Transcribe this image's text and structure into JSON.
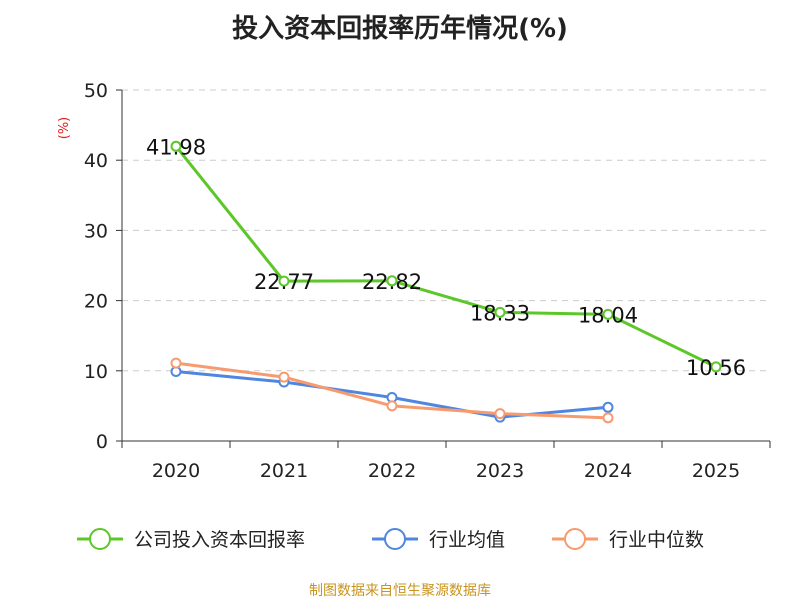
{
  "title": "投入资本回报率历年情况(%)",
  "source": "制图数据来自恒生聚源数据库",
  "chart_data": {
    "type": "line",
    "categories": [
      "2020",
      "2021",
      "2022",
      "2023",
      "2024",
      "2025"
    ],
    "ylabel": "(%)",
    "ylim": [
      0,
      50
    ],
    "yticks": [
      0,
      10,
      20,
      30,
      40,
      50
    ],
    "grid": true,
    "legend_position": "bottom",
    "series": [
      {
        "name": "公司投入资本回报率",
        "color": "#5cc728",
        "values": [
          41.98,
          22.77,
          22.82,
          18.33,
          18.04,
          10.56
        ],
        "labels": [
          "41.98",
          "22.77",
          "22.82",
          "18.33",
          "18.04",
          "10.56"
        ]
      },
      {
        "name": "行业均值",
        "color": "#4f86e0",
        "values": [
          9.9,
          8.4,
          6.2,
          3.4,
          4.8,
          null
        ]
      },
      {
        "name": "行业中位数",
        "color": "#f79a6e",
        "values": [
          11.1,
          9.1,
          5.0,
          3.9,
          3.3,
          null
        ]
      }
    ]
  }
}
